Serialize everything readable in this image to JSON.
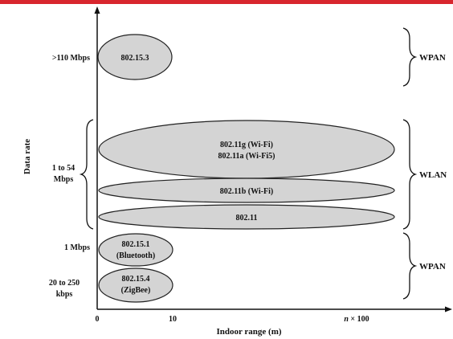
{
  "accent_color": "#d8262e",
  "ellipse_fill": "#d4d4d4",
  "axes": {
    "y_label": "Data rate",
    "x_label": "Indoor range (m)",
    "x_ticks": {
      "zero": "0",
      "ten": "10",
      "n_prefix": "n",
      "n_suffix": " × 100"
    },
    "y_ticks": {
      "high": ">110 Mbps",
      "mid_line1": "1 to 54",
      "mid_line2": "Mbps",
      "one_mbps": "1 Mbps",
      "low_line1": "20 to 250",
      "low_line2": "kbps"
    }
  },
  "standards": {
    "s802_15_3": "802.15.3",
    "s802_11g": "802.11g (Wi-Fi)",
    "s802_11a": "802.11a (Wi-Fi5)",
    "s802_11b": "802.11b (Wi-Fi)",
    "s802_11": "802.11",
    "s802_15_1_line1": "802.15.1",
    "s802_15_1_line2": "(Bluetooth)",
    "s802_15_4_line1": "802.15.4",
    "s802_15_4_line2": "(ZigBee)"
  },
  "groups": {
    "top": "WPAN",
    "middle": "WLAN",
    "bottom": "WPAN"
  }
}
